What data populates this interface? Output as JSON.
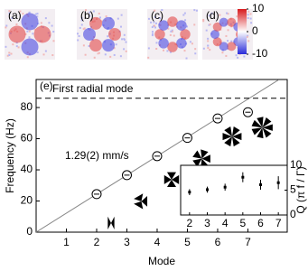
{
  "panels": {
    "labels": [
      "(a)",
      "(b)",
      "(c)",
      "(d)"
    ]
  },
  "chart_data": [
    {
      "type": "scatter",
      "panel_label": "(e)",
      "x_label": "Mode",
      "y_label": "Frequency (Hz)",
      "x": [
        2,
        3,
        4,
        5,
        6,
        7
      ],
      "series": [
        {
          "color": "#000000",
          "values": [
            24.4,
            36.6,
            48.8,
            60.5,
            73,
            77
          ]
        }
      ],
      "fit_line": {
        "label": "1.29(2) mm/s",
        "x": [
          0,
          8
        ],
        "y": [
          0,
          97.6
        ],
        "color": "#888888"
      },
      "reference_line": {
        "label": "First radial mode",
        "value": 86
      },
      "xlim": [
        0,
        8.3
      ],
      "ylim": [
        0,
        98
      ],
      "xticks": [
        1,
        2,
        3,
        4,
        5,
        6,
        7
      ],
      "yticks": [
        0,
        20,
        40,
        60,
        80
      ]
    },
    {
      "type": "errorbar",
      "y_label": "Q (π f / Γ)",
      "x": [
        2,
        3,
        4,
        5,
        6,
        7
      ],
      "series": [
        {
          "color": "#000000",
          "values": [
            4.6,
            5.1,
            5.6,
            7.6,
            6.1,
            6.5
          ],
          "errors": [
            0.6,
            0.6,
            0.7,
            1.0,
            1.0,
            1.3
          ]
        }
      ],
      "xlim": [
        1.5,
        7.5
      ],
      "ylim": [
        0,
        10
      ],
      "xticks": [
        2,
        3,
        4,
        5,
        6,
        7
      ],
      "yticks": [
        0,
        5,
        10
      ]
    },
    {
      "type": "colorbar",
      "colors": [
        "#d7191c",
        "#ffffff",
        "#2b2bd9"
      ],
      "ylim": [
        -10,
        10
      ],
      "yticks": [
        -10,
        0,
        10
      ]
    }
  ]
}
